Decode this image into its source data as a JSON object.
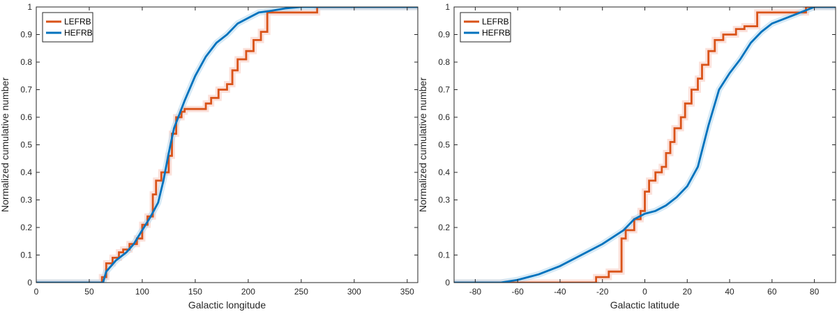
{
  "chart_data": [
    {
      "type": "line",
      "xlabel": "Galactic longitude",
      "ylabel": "Normalized cumulative number",
      "xlim": [
        0,
        360
      ],
      "ylim": [
        0,
        1
      ],
      "xticks": [
        "0",
        "50",
        "100",
        "150",
        "200",
        "250",
        "300",
        "350"
      ],
      "yticks": [
        "0",
        "0.1",
        "0.2",
        "0.3",
        "0.4",
        "0.5",
        "0.6",
        "0.7",
        "0.8",
        "0.9",
        "1"
      ],
      "legend": [
        "LEFRB",
        "HEFRB"
      ],
      "legend_position": "top-left",
      "series": [
        {
          "name": "LEFRB",
          "color": "#D95319",
          "step": true,
          "x": [
            0,
            62,
            62,
            66,
            72,
            78,
            82,
            88,
            95,
            100,
            105,
            110,
            113,
            118,
            125,
            128,
            132,
            137,
            140,
            160,
            165,
            172,
            180,
            185,
            190,
            198,
            205,
            212,
            218,
            265,
            360
          ],
          "y": [
            0,
            0,
            0.02,
            0.07,
            0.09,
            0.11,
            0.12,
            0.14,
            0.16,
            0.21,
            0.24,
            0.32,
            0.37,
            0.4,
            0.46,
            0.54,
            0.6,
            0.62,
            0.63,
            0.65,
            0.67,
            0.7,
            0.72,
            0.77,
            0.81,
            0.84,
            0.88,
            0.91,
            0.98,
            1.0,
            1.0
          ]
        },
        {
          "name": "HEFRB",
          "color": "#0072BD",
          "step": false,
          "x": [
            0,
            63,
            66,
            75,
            85,
            92,
            100,
            108,
            115,
            120,
            125,
            130,
            135,
            140,
            150,
            160,
            170,
            180,
            190,
            200,
            210,
            220,
            235,
            250,
            360
          ],
          "y": [
            0,
            0,
            0.04,
            0.08,
            0.11,
            0.14,
            0.19,
            0.24,
            0.29,
            0.37,
            0.47,
            0.56,
            0.61,
            0.66,
            0.75,
            0.82,
            0.87,
            0.9,
            0.94,
            0.96,
            0.98,
            0.985,
            0.995,
            1.0,
            1.0
          ]
        }
      ]
    },
    {
      "type": "line",
      "xlabel": "Galactic latitude",
      "ylabel": "Normalized cumulative number",
      "xlim": [
        -90,
        90
      ],
      "ylim": [
        0,
        1
      ],
      "xticks": [
        "-80",
        "-60",
        "-40",
        "-20",
        "0",
        "20",
        "40",
        "60",
        "80"
      ],
      "yticks": [
        "0",
        "0.1",
        "0.2",
        "0.3",
        "0.4",
        "0.5",
        "0.6",
        "0.7",
        "0.8",
        "0.9",
        "1"
      ],
      "legend": [
        "LEFRB",
        "HEFRB"
      ],
      "legend_position": "top-left",
      "series": [
        {
          "name": "LEFRB",
          "color": "#D95319",
          "step": true,
          "x": [
            -90,
            -23,
            -23,
            -17,
            -11,
            -9,
            -5,
            -2,
            0,
            2,
            5,
            8,
            10,
            12,
            14,
            17,
            19,
            22,
            25,
            27,
            30,
            33,
            37,
            43,
            47,
            53,
            76,
            79,
            90
          ],
          "y": [
            0,
            0,
            0.02,
            0.04,
            0.16,
            0.19,
            0.23,
            0.26,
            0.33,
            0.37,
            0.4,
            0.42,
            0.47,
            0.51,
            0.56,
            0.6,
            0.65,
            0.7,
            0.74,
            0.79,
            0.84,
            0.88,
            0.9,
            0.92,
            0.93,
            0.98,
            1.0,
            1.0,
            1.0
          ]
        },
        {
          "name": "HEFRB",
          "color": "#0072BD",
          "step": false,
          "x": [
            -90,
            -68,
            -60,
            -50,
            -40,
            -30,
            -20,
            -10,
            -5,
            0,
            5,
            10,
            15,
            20,
            25,
            30,
            35,
            40,
            45,
            50,
            55,
            60,
            70,
            80,
            90
          ],
          "y": [
            0,
            0,
            0.01,
            0.03,
            0.06,
            0.1,
            0.14,
            0.19,
            0.23,
            0.25,
            0.26,
            0.28,
            0.31,
            0.35,
            0.42,
            0.57,
            0.7,
            0.76,
            0.81,
            0.87,
            0.91,
            0.94,
            0.97,
            1.0,
            1.0
          ]
        }
      ]
    }
  ]
}
